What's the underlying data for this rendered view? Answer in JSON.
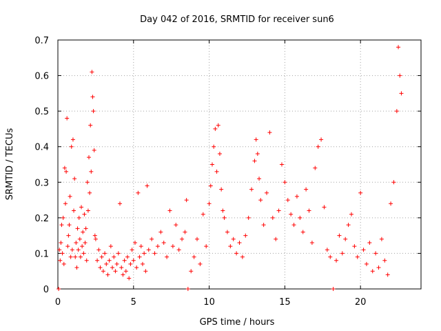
{
  "chart_data": {
    "type": "scatter",
    "title": "Day 042 of 2016, SRMTID for receiver sun6",
    "xlabel": "GPS time / hours",
    "ylabel": "SRMTID / TECUs",
    "xlim": [
      0,
      24
    ],
    "ylim": [
      0,
      0.7
    ],
    "xticks": [
      "0",
      "5",
      "10",
      "15",
      "20"
    ],
    "yticks": [
      "0",
      "0.1",
      "0.2",
      "0.3",
      "0.4",
      "0.5",
      "0.6",
      "0.7"
    ],
    "grid": true,
    "marker": "plus",
    "color": "#ff0000",
    "series": [
      {
        "name": "SRMTID",
        "points": [
          [
            0.05,
            0.0
          ],
          [
            0.1,
            0.11
          ],
          [
            0.15,
            0.08
          ],
          [
            0.2,
            0.13
          ],
          [
            0.25,
            0.18
          ],
          [
            0.3,
            0.1
          ],
          [
            0.35,
            0.2
          ],
          [
            0.4,
            0.07
          ],
          [
            0.45,
            0.34
          ],
          [
            0.5,
            0.24
          ],
          [
            0.55,
            0.33
          ],
          [
            0.6,
            0.48
          ],
          [
            0.65,
            0.12
          ],
          [
            0.7,
            0.15
          ],
          [
            0.75,
            0.18
          ],
          [
            0.8,
            0.26
          ],
          [
            0.85,
            0.09
          ],
          [
            0.9,
            0.4
          ],
          [
            0.95,
            0.11
          ],
          [
            1.0,
            0.42
          ],
          [
            1.05,
            0.22
          ],
          [
            1.1,
            0.31
          ],
          [
            1.15,
            0.09
          ],
          [
            1.2,
            0.13
          ],
          [
            1.25,
            0.06
          ],
          [
            1.3,
            0.17
          ],
          [
            1.35,
            0.11
          ],
          [
            1.4,
            0.2
          ],
          [
            1.45,
            0.14
          ],
          [
            1.5,
            0.09
          ],
          [
            1.55,
            0.23
          ],
          [
            1.6,
            0.12
          ],
          [
            1.65,
            0.16
          ],
          [
            1.7,
            0.1
          ],
          [
            1.75,
            0.21
          ],
          [
            1.8,
            0.13
          ],
          [
            1.85,
            0.17
          ],
          [
            1.9,
            0.08
          ],
          [
            1.95,
            0.3
          ],
          [
            2.0,
            0.22
          ],
          [
            2.05,
            0.37
          ],
          [
            2.1,
            0.27
          ],
          [
            2.15,
            0.46
          ],
          [
            2.2,
            0.33
          ],
          [
            2.25,
            0.61
          ],
          [
            2.3,
            0.54
          ],
          [
            2.35,
            0.5
          ],
          [
            2.4,
            0.39
          ],
          [
            2.45,
            0.15
          ],
          [
            2.5,
            0.14
          ],
          [
            2.6,
            0.08
          ],
          [
            2.7,
            0.11
          ],
          [
            2.8,
            0.06
          ],
          [
            2.9,
            0.09
          ],
          [
            3.0,
            0.05
          ],
          [
            3.1,
            0.1
          ],
          [
            3.2,
            0.07
          ],
          [
            3.3,
            0.04
          ],
          [
            3.4,
            0.08
          ],
          [
            3.5,
            0.12
          ],
          [
            3.6,
            0.06
          ],
          [
            3.7,
            0.09
          ],
          [
            3.8,
            0.05
          ],
          [
            3.9,
            0.07
          ],
          [
            4.0,
            0.1
          ],
          [
            4.1,
            0.24
          ],
          [
            4.2,
            0.06
          ],
          [
            4.3,
            0.04
          ],
          [
            4.4,
            0.08
          ],
          [
            4.5,
            0.05
          ],
          [
            4.6,
            0.09
          ],
          [
            4.7,
            0.03
          ],
          [
            4.8,
            0.07
          ],
          [
            4.9,
            0.11
          ],
          [
            5.0,
            0.08
          ],
          [
            5.1,
            0.13
          ],
          [
            5.2,
            0.06
          ],
          [
            5.3,
            0.27
          ],
          [
            5.4,
            0.09
          ],
          [
            5.5,
            0.12
          ],
          [
            5.6,
            0.07
          ],
          [
            5.7,
            0.1
          ],
          [
            5.8,
            0.05
          ],
          [
            5.9,
            0.29
          ],
          [
            6.0,
            0.11
          ],
          [
            6.2,
            0.14
          ],
          [
            6.4,
            0.1
          ],
          [
            6.6,
            0.12
          ],
          [
            6.8,
            0.16
          ],
          [
            7.0,
            0.13
          ],
          [
            7.2,
            0.09
          ],
          [
            7.4,
            0.22
          ],
          [
            7.6,
            0.12
          ],
          [
            7.8,
            0.18
          ],
          [
            8.0,
            0.11
          ],
          [
            8.2,
            0.14
          ],
          [
            8.4,
            0.16
          ],
          [
            8.5,
            0.25
          ],
          [
            8.6,
            0.0
          ],
          [
            8.8,
            0.05
          ],
          [
            9.0,
            0.09
          ],
          [
            9.2,
            0.14
          ],
          [
            9.4,
            0.07
          ],
          [
            9.6,
            0.21
          ],
          [
            9.8,
            0.12
          ],
          [
            10.0,
            0.24
          ],
          [
            10.1,
            0.29
          ],
          [
            10.2,
            0.35
          ],
          [
            10.3,
            0.4
          ],
          [
            10.4,
            0.45
          ],
          [
            10.5,
            0.33
          ],
          [
            10.6,
            0.46
          ],
          [
            10.7,
            0.38
          ],
          [
            10.8,
            0.28
          ],
          [
            10.9,
            0.22
          ],
          [
            11.0,
            0.2
          ],
          [
            11.2,
            0.16
          ],
          [
            11.4,
            0.12
          ],
          [
            11.6,
            0.14
          ],
          [
            11.8,
            0.1
          ],
          [
            12.0,
            0.13
          ],
          [
            12.2,
            0.09
          ],
          [
            12.4,
            0.15
          ],
          [
            12.6,
            0.2
          ],
          [
            12.8,
            0.28
          ],
          [
            13.0,
            0.36
          ],
          [
            13.1,
            0.42
          ],
          [
            13.2,
            0.38
          ],
          [
            13.3,
            0.31
          ],
          [
            13.4,
            0.25
          ],
          [
            13.6,
            0.18
          ],
          [
            13.8,
            0.27
          ],
          [
            14.0,
            0.44
          ],
          [
            14.2,
            0.2
          ],
          [
            14.4,
            0.14
          ],
          [
            14.6,
            0.22
          ],
          [
            14.8,
            0.35
          ],
          [
            15.0,
            0.3
          ],
          [
            15.2,
            0.25
          ],
          [
            15.4,
            0.21
          ],
          [
            15.6,
            0.18
          ],
          [
            15.8,
            0.26
          ],
          [
            16.0,
            0.2
          ],
          [
            16.2,
            0.16
          ],
          [
            16.4,
            0.28
          ],
          [
            16.6,
            0.22
          ],
          [
            16.8,
            0.13
          ],
          [
            17.0,
            0.34
          ],
          [
            17.2,
            0.4
          ],
          [
            17.4,
            0.42
          ],
          [
            17.6,
            0.23
          ],
          [
            17.8,
            0.11
          ],
          [
            18.0,
            0.09
          ],
          [
            18.2,
            0.0
          ],
          [
            18.4,
            0.08
          ],
          [
            18.6,
            0.15
          ],
          [
            18.8,
            0.1
          ],
          [
            19.0,
            0.14
          ],
          [
            19.2,
            0.18
          ],
          [
            19.4,
            0.21
          ],
          [
            19.6,
            0.12
          ],
          [
            19.8,
            0.09
          ],
          [
            20.0,
            0.27
          ],
          [
            20.2,
            0.11
          ],
          [
            20.4,
            0.07
          ],
          [
            20.6,
            0.13
          ],
          [
            20.8,
            0.05
          ],
          [
            21.0,
            0.1
          ],
          [
            21.2,
            0.06
          ],
          [
            21.4,
            0.14
          ],
          [
            21.6,
            0.08
          ],
          [
            21.8,
            0.04
          ],
          [
            22.0,
            0.24
          ],
          [
            22.2,
            0.3
          ],
          [
            22.4,
            0.5
          ],
          [
            22.5,
            0.68
          ],
          [
            22.6,
            0.6
          ],
          [
            22.7,
            0.55
          ]
        ]
      }
    ]
  }
}
